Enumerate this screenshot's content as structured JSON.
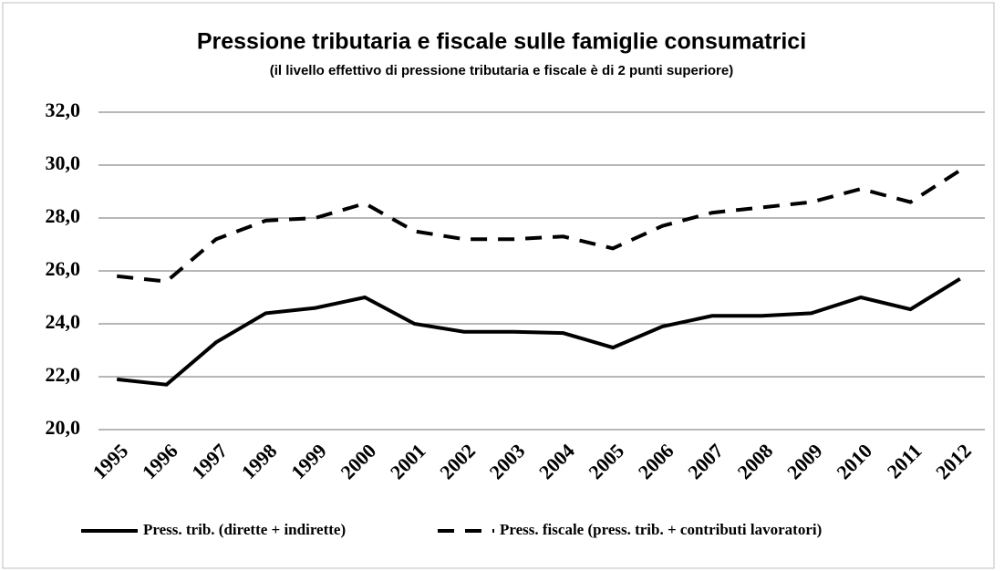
{
  "chart_data": {
    "type": "line",
    "title": "Pressione tributaria e fiscale sulle famiglie consumatrici",
    "subtitle": "(il livello effettivo di pressione tributaria e fiscale è di 2 punti superiore)",
    "categories": [
      "1995",
      "1996",
      "1997",
      "1998",
      "1999",
      "2000",
      "2001",
      "2002",
      "2003",
      "2004",
      "2005",
      "2006",
      "2007",
      "2008",
      "2009",
      "2010",
      "2011",
      "2012"
    ],
    "series": [
      {
        "name": "Press. trib. (dirette + indirette)",
        "color": "#000000",
        "line_style": "solid",
        "values": [
          21.9,
          21.7,
          23.3,
          24.4,
          24.6,
          25.0,
          24.0,
          23.7,
          23.7,
          23.65,
          23.1,
          23.9,
          24.3,
          24.3,
          24.4,
          25.0,
          24.55,
          25.7
        ]
      },
      {
        "name": "Press. fiscale (press. trib. + contributi lavoratori)",
        "color": "#000000",
        "line_style": "dashed",
        "values": [
          25.8,
          25.6,
          27.2,
          27.9,
          28.0,
          28.55,
          27.5,
          27.2,
          27.2,
          27.3,
          26.85,
          27.7,
          28.2,
          28.4,
          28.6,
          29.1,
          28.6,
          29.8
        ]
      }
    ],
    "ylim": [
      20,
      32
    ],
    "yticks": [
      {
        "value": 20,
        "label": "20,0"
      },
      {
        "value": 22,
        "label": "22,0"
      },
      {
        "value": 24,
        "label": "24,0"
      },
      {
        "value": 26,
        "label": "26,0"
      },
      {
        "value": 28,
        "label": "28,0"
      },
      {
        "value": 30,
        "label": "30,0"
      },
      {
        "value": 32,
        "label": "32,0"
      }
    ],
    "grid": true,
    "legend": "bottom"
  }
}
